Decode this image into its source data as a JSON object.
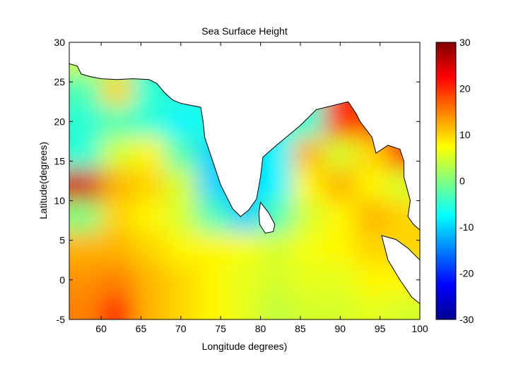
{
  "chart_data": {
    "type": "heatmap",
    "title": "Sea Surface Height",
    "xlabel": "Longitude degrees)",
    "ylabel": "Latitude(degrees)",
    "xlim": [
      56,
      100
    ],
    "ylim": [
      -5,
      30
    ],
    "xticks": [
      60,
      65,
      70,
      75,
      80,
      85,
      90,
      95,
      100
    ],
    "yticks": [
      -5,
      0,
      5,
      10,
      15,
      20,
      25,
      30
    ],
    "colorbar": {
      "range": [
        -30,
        30
      ],
      "ticks": [
        -30,
        -20,
        -10,
        0,
        10,
        20,
        30
      ],
      "colormap": "jet"
    },
    "grid_lon": [
      58,
      62,
      66,
      70,
      74,
      78,
      82,
      86,
      90,
      94,
      98
    ],
    "grid_lat": [
      28,
      24,
      20,
      16,
      12,
      8,
      4,
      0,
      -4
    ],
    "values": [
      [
        5,
        0,
        -5,
        -5,
        -6,
        -8,
        -6,
        -5,
        20,
        18,
        15
      ],
      [
        -3,
        10,
        -5,
        -5,
        -6,
        -8,
        -6,
        -5,
        20,
        18,
        15
      ],
      [
        -5,
        -3,
        -5,
        -8,
        -6,
        -8,
        -6,
        -5,
        20,
        18,
        18
      ],
      [
        -5,
        5,
        8,
        -3,
        -10,
        -10,
        -8,
        12,
        5,
        10,
        20
      ],
      [
        25,
        12,
        10,
        5,
        -10,
        -10,
        -8,
        8,
        12,
        8,
        5
      ],
      [
        0,
        10,
        8,
        5,
        -3,
        -10,
        -3,
        5,
        8,
        12,
        10
      ],
      [
        12,
        12,
        10,
        8,
        8,
        7,
        5,
        7,
        8,
        10,
        10
      ],
      [
        14,
        15,
        12,
        10,
        8,
        6,
        5,
        6,
        6,
        8,
        8
      ],
      [
        15,
        20,
        12,
        10,
        8,
        6,
        4,
        5,
        5,
        6,
        5
      ]
    ],
    "land": [
      [
        [
          56,
          30
        ],
        [
          56,
          27.3
        ],
        [
          57,
          27
        ],
        [
          57.5,
          26
        ],
        [
          58.5,
          25.7
        ],
        [
          60,
          25.4
        ],
        [
          62,
          25.3
        ],
        [
          64,
          25.4
        ],
        [
          66,
          25.3
        ],
        [
          67,
          24.8
        ],
        [
          68,
          23.6
        ],
        [
          69,
          22.7
        ],
        [
          70,
          22.3
        ],
        [
          72.5,
          21.8
        ],
        [
          72.8,
          20
        ],
        [
          73,
          18
        ],
        [
          74,
          15
        ],
        [
          75,
          12
        ],
        [
          76.5,
          9
        ],
        [
          77.5,
          8
        ],
        [
          78.5,
          8.8
        ],
        [
          79.5,
          10.2
        ],
        [
          80,
          13
        ],
        [
          80.3,
          15.5
        ],
        [
          82,
          17
        ],
        [
          85,
          19.5
        ],
        [
          87,
          21.5
        ],
        [
          89,
          22
        ],
        [
          91,
          22.5
        ],
        [
          92,
          21
        ],
        [
          92.5,
          20
        ],
        [
          94,
          18
        ],
        [
          94.5,
          16
        ],
        [
          96,
          17
        ],
        [
          97.5,
          16.5
        ],
        [
          98,
          15
        ],
        [
          98,
          13
        ],
        [
          98.8,
          10
        ],
        [
          98.5,
          8
        ],
        [
          99.2,
          7
        ],
        [
          100,
          6.3
        ],
        [
          100,
          30
        ]
      ],
      [
        [
          80,
          9.8
        ],
        [
          81,
          8.5
        ],
        [
          81.8,
          7
        ],
        [
          81.6,
          6.1
        ],
        [
          80.6,
          5.9
        ],
        [
          79.9,
          7
        ],
        [
          79.8,
          8.5
        ]
      ],
      [
        [
          95.2,
          5.6
        ],
        [
          97,
          5.1
        ],
        [
          98.5,
          4
        ],
        [
          100,
          2.5
        ],
        [
          100,
          -3
        ],
        [
          99,
          -2.2
        ],
        [
          97.5,
          0
        ],
        [
          96,
          2.5
        ]
      ]
    ]
  }
}
